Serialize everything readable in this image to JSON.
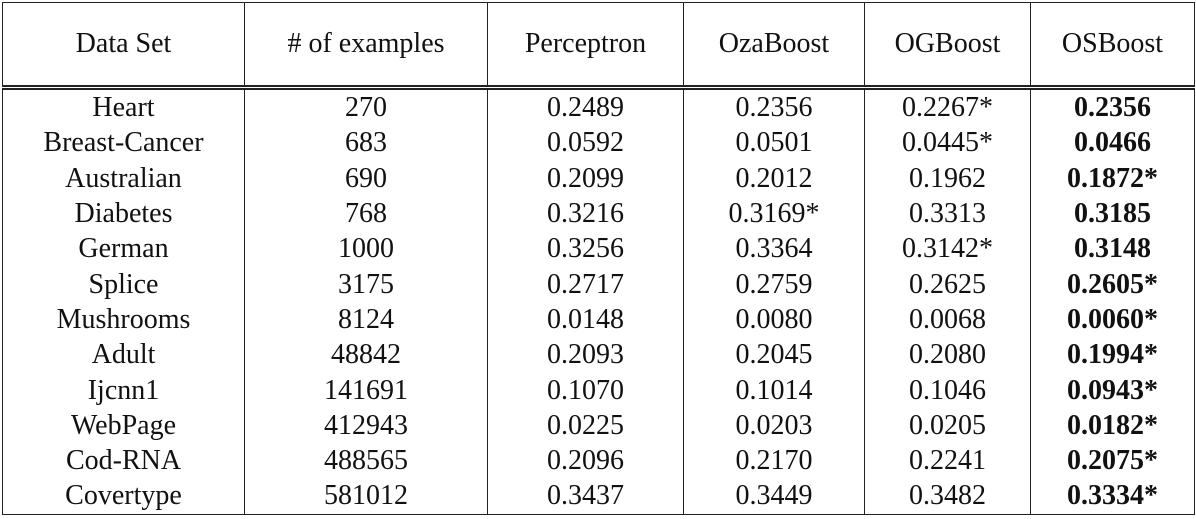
{
  "table": {
    "header": [
      "Data Set",
      "# of examples",
      "Perceptron",
      "OzaBoost",
      "OGBoost",
      "OSBoost"
    ],
    "rows": [
      [
        "Heart",
        "270",
        "0.2489",
        "0.2356",
        "0.2267*",
        "0.2356"
      ],
      [
        "Breast-Cancer",
        "683",
        "0.0592",
        "0.0501",
        "0.0445*",
        "0.0466"
      ],
      [
        "Australian",
        "690",
        "0.2099",
        "0.2012",
        "0.1962",
        "0.1872*"
      ],
      [
        "Diabetes",
        "768",
        "0.3216",
        "0.3169*",
        "0.3313",
        "0.3185"
      ],
      [
        "German",
        "1000",
        "0.3256",
        "0.3364",
        "0.3142*",
        "0.3148"
      ],
      [
        "Splice",
        "3175",
        "0.2717",
        "0.2759",
        "0.2625",
        "0.2605*"
      ],
      [
        "Mushrooms",
        "8124",
        "0.0148",
        "0.0080",
        "0.0068",
        "0.0060*"
      ],
      [
        "Adult",
        "48842",
        "0.2093",
        "0.2045",
        "0.2080",
        "0.1994*"
      ],
      [
        "Ijcnn1",
        "141691",
        "0.1070",
        "0.1014",
        "0.1046",
        "0.0943*"
      ],
      [
        "WebPage",
        "412943",
        "0.0225",
        "0.0203",
        "0.0205",
        "0.0182*"
      ],
      [
        "Cod-RNA",
        "488565",
        "0.2096",
        "0.2170",
        "0.2241",
        "0.2075*"
      ],
      [
        "Covertype",
        "581012",
        "0.3437",
        "0.3449",
        "0.3482",
        "0.3334*"
      ]
    ]
  }
}
